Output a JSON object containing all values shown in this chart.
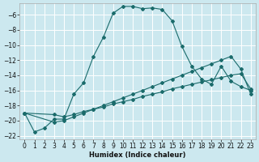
{
  "xlabel": "Humidex (Indice chaleur)",
  "bg_color": "#cce8ef",
  "grid_color": "#ffffff",
  "line_color": "#1a6b6b",
  "xlim": [
    -0.5,
    23.5
  ],
  "ylim": [
    -22.5,
    -4.5
  ],
  "yticks": [
    -6,
    -8,
    -10,
    -12,
    -14,
    -16,
    -18,
    -20,
    -22
  ],
  "xticks": [
    0,
    1,
    2,
    3,
    4,
    5,
    6,
    7,
    8,
    9,
    10,
    11,
    12,
    13,
    14,
    15,
    16,
    17,
    18,
    19,
    20,
    21,
    22,
    23
  ],
  "line1_x": [
    0,
    1,
    2,
    3,
    4,
    5,
    6,
    7,
    8,
    9,
    10,
    11,
    12,
    13,
    14,
    15,
    16,
    17,
    18,
    19,
    20,
    21,
    22,
    23
  ],
  "line1_y": [
    -19,
    -21.5,
    -21,
    -19.8,
    -19.8,
    -16.5,
    -15.0,
    -11.5,
    -9.0,
    -5.8,
    -4.9,
    -4.9,
    -5.2,
    -5.1,
    -5.3,
    -6.8,
    -10.2,
    -12.8,
    -14.5,
    -15.2,
    -12.8,
    -14.8,
    -15.5,
    -16.0
  ],
  "line2_x": [
    0,
    3,
    4,
    5,
    6,
    7,
    8,
    9,
    10,
    11,
    12,
    13,
    14,
    15,
    16,
    17,
    18,
    19,
    20,
    21,
    22,
    23
  ],
  "line2_y": [
    -19.0,
    -19.2,
    -19.5,
    -19.2,
    -18.8,
    -18.5,
    -18.2,
    -17.8,
    -17.5,
    -17.2,
    -16.8,
    -16.5,
    -16.2,
    -15.8,
    -15.5,
    -15.2,
    -14.9,
    -14.6,
    -14.3,
    -14.0,
    -13.8,
    -15.8
  ],
  "line3_x": [
    0,
    3,
    4,
    5,
    6,
    7,
    8,
    9,
    10,
    11,
    12,
    13,
    14,
    15,
    16,
    17,
    18,
    19,
    20,
    21,
    22,
    23
  ],
  "line3_y": [
    -19.0,
    -20.2,
    -20.0,
    -19.5,
    -19.0,
    -18.5,
    -18.0,
    -17.5,
    -17.0,
    -16.5,
    -16.0,
    -15.5,
    -15.0,
    -14.5,
    -14.0,
    -13.5,
    -13.0,
    -12.5,
    -12.0,
    -11.5,
    -13.2,
    -16.5
  ],
  "tick_fontsize": 5.5,
  "xlabel_fontsize": 6.0,
  "linewidth": 0.8,
  "markersize": 2.0
}
